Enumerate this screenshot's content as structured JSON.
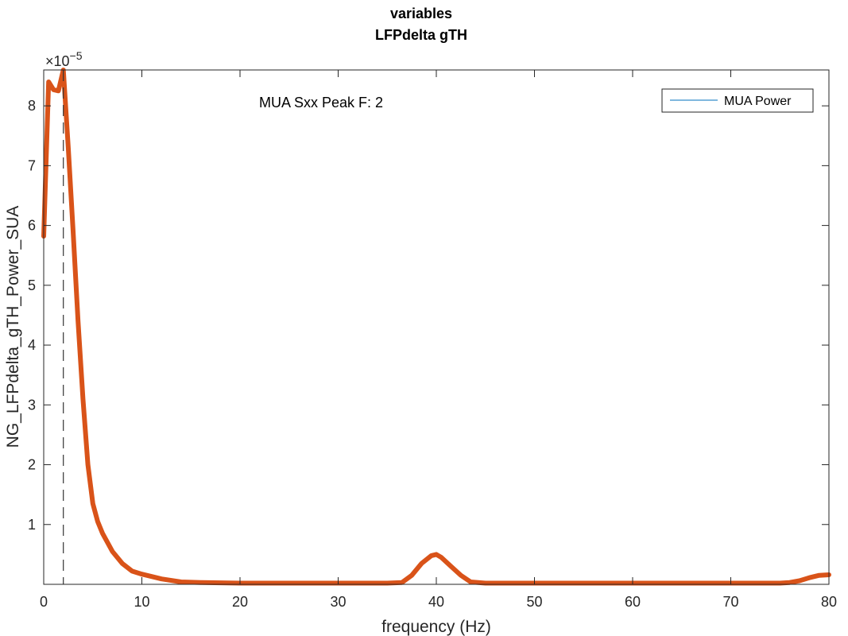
{
  "chart_data": {
    "type": "line",
    "title": [
      "variables",
      "LFPdelta gTH"
    ],
    "xlabel": "frequency (Hz)",
    "ylabel": "NG_LFPdelta_gTH_Power_SUA",
    "y_multiplier": "×10",
    "y_exponent": "−5",
    "xlim": [
      0,
      80
    ],
    "ylim": [
      0,
      8.6
    ],
    "xticks": [
      0,
      10,
      20,
      30,
      40,
      50,
      60,
      70,
      80
    ],
    "yticks": [
      1,
      2,
      3,
      4,
      5,
      6,
      7,
      8
    ],
    "grid": false,
    "legend": {
      "location": "top-right",
      "entries": [
        "MUA Power"
      ]
    },
    "annotation": "MUA Sxx Peak F: 2",
    "peak_frequency": 2,
    "series": [
      {
        "name": "MUA Power",
        "color": "#D95319",
        "x": [
          0,
          0.5,
          1,
          1.5,
          2,
          2.5,
          3,
          3.5,
          4,
          4.5,
          5,
          5.5,
          6,
          7,
          8,
          9,
          10,
          11,
          12,
          14,
          16,
          20,
          25,
          30,
          35,
          36.5,
          37.5,
          38.5,
          39.5,
          40,
          40.5,
          41.5,
          42.5,
          43.5,
          45,
          50,
          55,
          60,
          65,
          70,
          74,
          75,
          76,
          77,
          78,
          79,
          80
        ],
        "y": [
          5.82,
          8.4,
          8.27,
          8.25,
          8.6,
          7.3,
          5.9,
          4.4,
          3.1,
          2.0,
          1.35,
          1.05,
          0.85,
          0.55,
          0.35,
          0.22,
          0.17,
          0.13,
          0.09,
          0.04,
          0.03,
          0.02,
          0.02,
          0.02,
          0.02,
          0.03,
          0.15,
          0.35,
          0.48,
          0.5,
          0.45,
          0.3,
          0.15,
          0.04,
          0.02,
          0.02,
          0.02,
          0.02,
          0.02,
          0.02,
          0.02,
          0.02,
          0.03,
          0.06,
          0.11,
          0.15,
          0.16
        ]
      }
    ],
    "peak_marker_color": "#333333"
  }
}
